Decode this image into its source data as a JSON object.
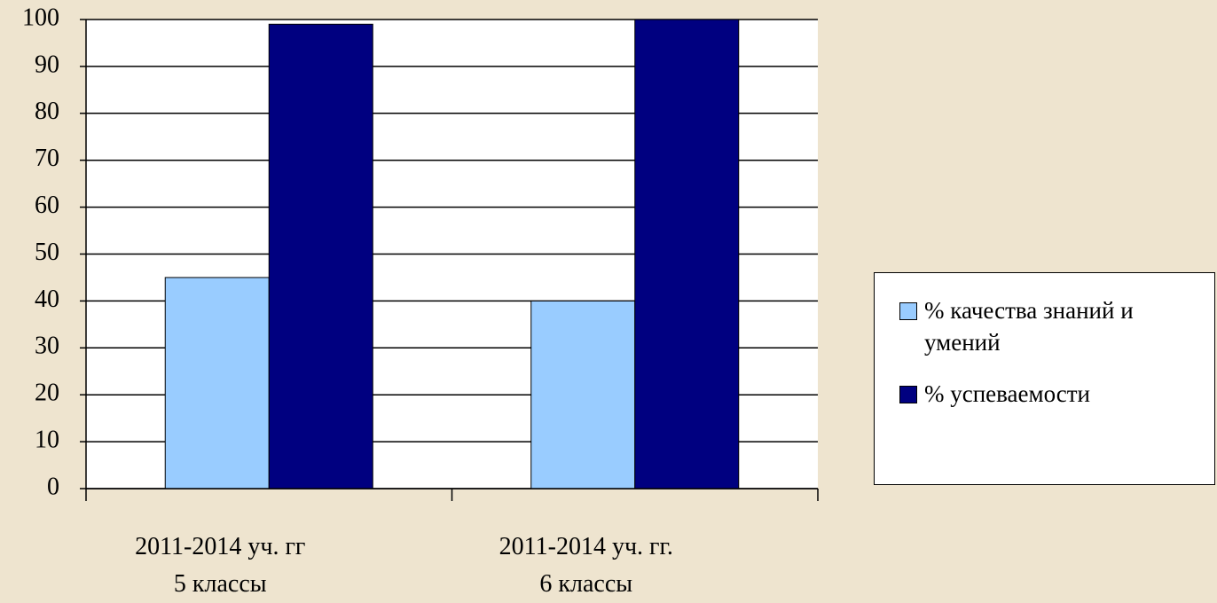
{
  "chart_data": {
    "type": "bar",
    "categories": [
      "2011-2014 уч. гг\n5 классы",
      "2011-2014 уч. гг.\n6 классы"
    ],
    "series": [
      {
        "name": "% качества знаний и умений",
        "color": "#99ccff",
        "values": [
          45,
          40
        ]
      },
      {
        "name": "% успеваемости",
        "color": "#000080",
        "values": [
          99,
          100
        ]
      }
    ],
    "ylim": [
      0,
      100
    ],
    "yticks": [
      0,
      10,
      20,
      30,
      40,
      50,
      60,
      70,
      80,
      90,
      100
    ],
    "grid": true,
    "legend": "right"
  }
}
